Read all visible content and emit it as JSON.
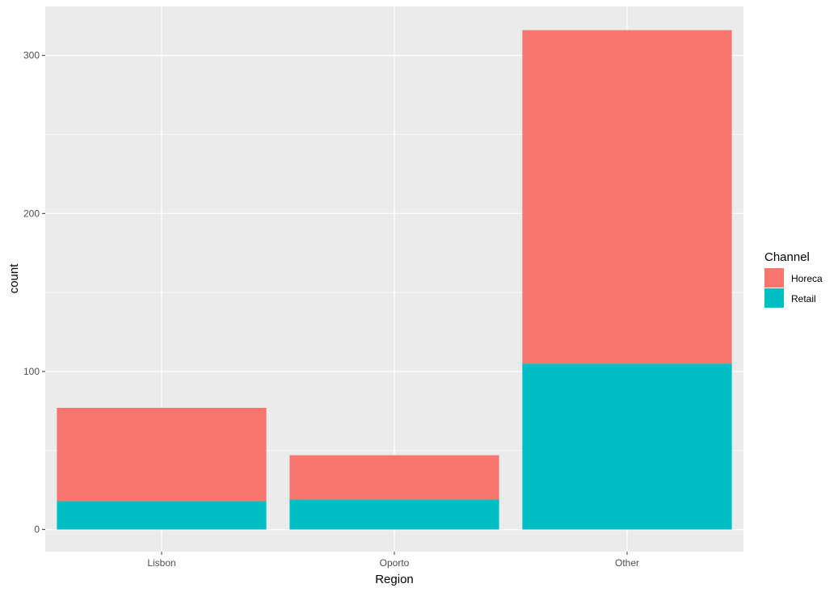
{
  "chart_data": {
    "type": "bar",
    "stacked": true,
    "categories": [
      "Lisbon",
      "Oporto",
      "Other"
    ],
    "series": [
      {
        "name": "Horeca",
        "values": [
          59,
          28,
          211
        ],
        "color": "#F8766D"
      },
      {
        "name": "Retail",
        "values": [
          18,
          19,
          105
        ],
        "color": "#00BFC4"
      }
    ],
    "xlabel": "Region",
    "ylabel": "count",
    "ylim": [
      -14,
      331
    ],
    "yticks": [
      0,
      100,
      200,
      300
    ],
    "grid": true,
    "legend": {
      "title": "Channel",
      "position": "right"
    },
    "colors": {
      "panel": "#EBEBEB",
      "grid": "#FFFFFF",
      "tick_text": "#4D4D4D"
    }
  }
}
